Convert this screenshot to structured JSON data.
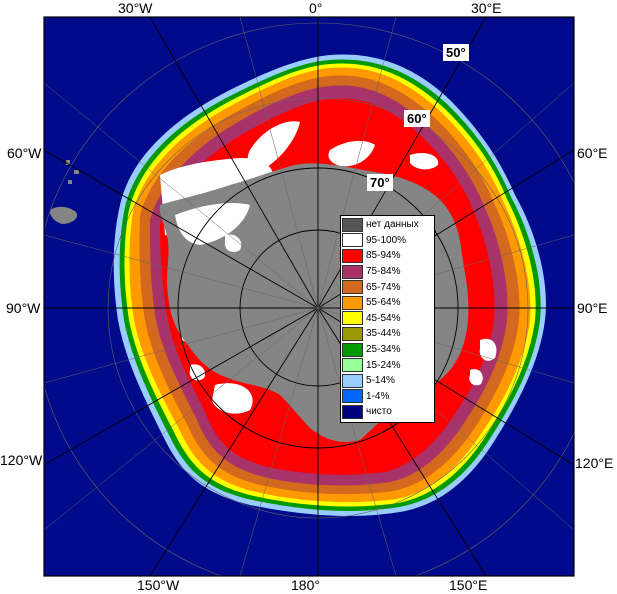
{
  "map": {
    "longitude_labels": {
      "lon_30w_top": "30°W",
      "lon_0": "0°",
      "lon_30e_top": "30°E",
      "lon_60w": "60°W",
      "lon_60e": "60°E",
      "lon_90w": "90°W",
      "lon_90e": "90°E",
      "lon_120w": "120°W",
      "lon_120e": "120°E",
      "lon_150w": "150°W",
      "lon_180": "180°",
      "lon_150e": "150°E"
    },
    "latitude_labels": {
      "lat_50": "50°",
      "lat_60": "60°",
      "lat_70": "70°"
    }
  },
  "legend": {
    "items": [
      {
        "label": "нет данных",
        "color": "#555555"
      },
      {
        "label": "95-100%",
        "color": "#ffffff"
      },
      {
        "label": "85-94%",
        "color": "#ff0000"
      },
      {
        "label": "75-84%",
        "color": "#a8326a"
      },
      {
        "label": "65-74%",
        "color": "#d2691e"
      },
      {
        "label": "55-64%",
        "color": "#ff9900"
      },
      {
        "label": "45-54%",
        "color": "#ffff00"
      },
      {
        "label": "35-44%",
        "color": "#9a9a00"
      },
      {
        "label": "25-34%",
        "color": "#009900"
      },
      {
        "label": "15-24%",
        "color": "#99ff99"
      },
      {
        "label": "5-14%",
        "color": "#99ccff"
      },
      {
        "label": "1-4%",
        "color": "#0066ff"
      },
      {
        "label": "чисто",
        "color": "#000080"
      }
    ]
  },
  "colors": {
    "ocean": "#000a8a",
    "land": "#858585",
    "grid": "#000000"
  }
}
